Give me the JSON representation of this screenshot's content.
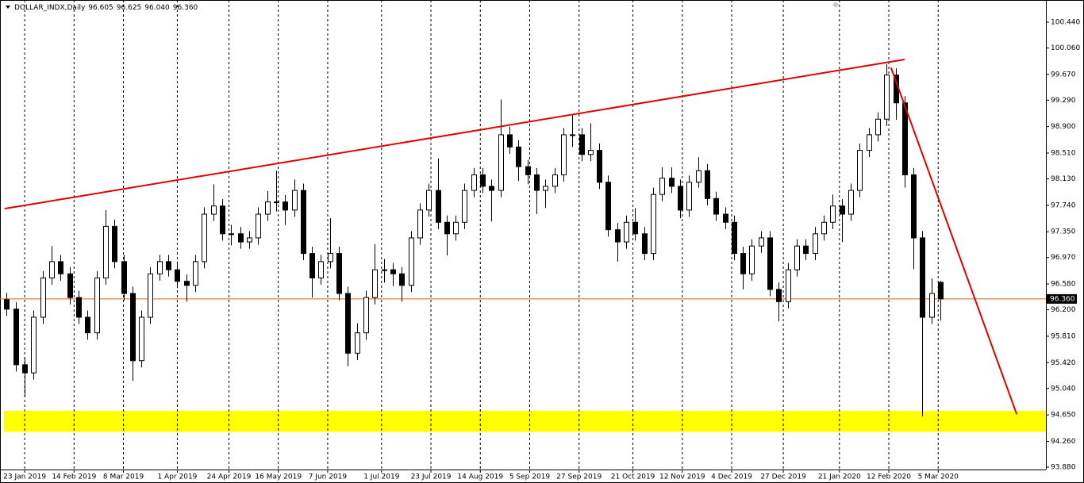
{
  "chart_data": {
    "type": "candlestick",
    "title": "DOLLAR_INDX,Daily",
    "last_bar": [
      {
        "value": 96.605,
        "label": "96.605"
      },
      {
        "value": 96.625,
        "label": "96.625"
      },
      {
        "value": 96.04,
        "label": "96.040"
      },
      {
        "value": 96.36,
        "label": "96.360"
      }
    ],
    "x": [
      "2019-01-15",
      "2019-01-19",
      "2019-01-23",
      "2019-01-27",
      "2019-01-31",
      "2019-02-04",
      "2019-02-08",
      "2019-02-12",
      "2019-02-16",
      "2019-02-20",
      "2019-02-24",
      "2019-02-28",
      "2019-03-04",
      "2019-03-08",
      "2019-03-12",
      "2019-03-16",
      "2019-03-20",
      "2019-03-24",
      "2019-03-28",
      "2019-04-01",
      "2019-04-05",
      "2019-04-09",
      "2019-04-13",
      "2019-04-17",
      "2019-04-21",
      "2019-04-25",
      "2019-04-29",
      "2019-05-03",
      "2019-05-07",
      "2019-05-11",
      "2019-05-15",
      "2019-05-19",
      "2019-05-23",
      "2019-05-27",
      "2019-05-31",
      "2019-06-04",
      "2019-06-08",
      "2019-06-12",
      "2019-06-16",
      "2019-06-20",
      "2019-06-24",
      "2019-06-28",
      "2019-07-02",
      "2019-07-06",
      "2019-07-10",
      "2019-07-14",
      "2019-07-18",
      "2019-07-22",
      "2019-07-26",
      "2019-07-30",
      "2019-08-03",
      "2019-08-07",
      "2019-08-11",
      "2019-08-15",
      "2019-08-19",
      "2019-08-23",
      "2019-08-27",
      "2019-08-31",
      "2019-09-04",
      "2019-09-08",
      "2019-09-12",
      "2019-09-16",
      "2019-09-20",
      "2019-09-24",
      "2019-09-28",
      "2019-10-02",
      "2019-10-06",
      "2019-10-10",
      "2019-10-14",
      "2019-10-18",
      "2019-10-22",
      "2019-10-26",
      "2019-10-30",
      "2019-11-03",
      "2019-11-07",
      "2019-11-11",
      "2019-11-15",
      "2019-11-19",
      "2019-11-23",
      "2019-11-27",
      "2019-12-01",
      "2019-12-05",
      "2019-12-09",
      "2019-12-13",
      "2019-12-17",
      "2019-12-21",
      "2019-12-25",
      "2019-12-29",
      "2020-01-02",
      "2020-01-06",
      "2020-01-10",
      "2020-01-14",
      "2020-01-18",
      "2020-01-22",
      "2020-01-26",
      "2020-01-30",
      "2020-02-03",
      "2020-02-07",
      "2020-02-11",
      "2020-02-15",
      "2020-02-19",
      "2020-02-23",
      "2020-02-27",
      "2020-03-02",
      "2020-03-06"
    ],
    "open": [
      96.35,
      96.21,
      95.39,
      95.27,
      96.09,
      96.67,
      96.91,
      96.73,
      96.38,
      96.09,
      95.86,
      96.67,
      97.43,
      96.91,
      96.44,
      95.45,
      96.09,
      96.73,
      96.91,
      96.79,
      96.62,
      96.56,
      96.91,
      97.61,
      97.73,
      97.32,
      97.32,
      97.2,
      97.26,
      97.61,
      97.79,
      97.79,
      97.67,
      97.96,
      97.03,
      96.67,
      96.91,
      97.03,
      96.44,
      95.56,
      95.86,
      96.38,
      96.79,
      96.79,
      96.73,
      96.56,
      97.26,
      97.67,
      97.96,
      97.49,
      97.32,
      97.49,
      97.96,
      98.19,
      98.02,
      97.96,
      98.78,
      98.6,
      98.31,
      98.19,
      97.96,
      98.02,
      98.19,
      98.78,
      98.78,
      98.49,
      98.55,
      98.08,
      97.38,
      97.2,
      97.49,
      97.32,
      97.03,
      97.9,
      98.14,
      98.02,
      97.67,
      98.08,
      98.25,
      97.84,
      97.61,
      97.49,
      97.03,
      96.73,
      97.14,
      97.26,
      96.5,
      96.32,
      96.79,
      97.14,
      97.03,
      97.32,
      97.49,
      97.73,
      97.61,
      97.96,
      98.55,
      98.78,
      99.01,
      99.66,
      99.25,
      98.19,
      97.26,
      96.09,
      96.605
    ],
    "high": [
      96.45,
      96.31,
      95.49,
      96.19,
      96.77,
      97.14,
      97.01,
      96.83,
      96.48,
      96.19,
      96.77,
      97.67,
      97.53,
      97.01,
      96.54,
      96.19,
      96.83,
      97.01,
      97.01,
      96.89,
      96.72,
      97.01,
      97.71,
      98.05,
      97.83,
      97.45,
      97.42,
      97.36,
      97.71,
      97.95,
      98.25,
      97.89,
      98.12,
      98.06,
      97.13,
      97.01,
      97.55,
      97.13,
      96.54,
      96.0,
      96.48,
      97.17,
      96.95,
      96.89,
      96.83,
      97.36,
      97.77,
      98.06,
      98.43,
      97.59,
      97.59,
      98.06,
      98.29,
      98.29,
      98.12,
      99.3,
      98.9,
      98.7,
      98.41,
      98.29,
      98.12,
      98.29,
      98.88,
      99.07,
      98.88,
      98.95,
      98.65,
      98.18,
      97.48,
      97.59,
      97.7,
      97.42,
      98.0,
      98.3,
      98.3,
      98.12,
      98.18,
      98.45,
      98.35,
      97.94,
      97.71,
      97.59,
      97.13,
      97.24,
      97.36,
      97.36,
      96.6,
      96.89,
      97.24,
      97.24,
      97.42,
      97.59,
      97.9,
      97.83,
      98.06,
      98.65,
      98.88,
      99.11,
      99.82,
      99.76,
      99.35,
      98.29,
      97.36,
      96.66,
      96.625
    ],
    "low": [
      96.11,
      95.29,
      94.92,
      95.17,
      95.99,
      96.57,
      96.63,
      96.28,
      95.99,
      95.76,
      95.76,
      96.57,
      96.81,
      96.34,
      95.15,
      95.35,
      95.99,
      96.63,
      96.69,
      96.52,
      96.32,
      96.46,
      96.81,
      97.51,
      97.22,
      97.15,
      97.1,
      97.1,
      97.16,
      97.51,
      97.65,
      97.45,
      97.57,
      96.93,
      96.38,
      96.57,
      96.81,
      96.34,
      95.37,
      95.46,
      95.76,
      96.28,
      96.6,
      96.55,
      96.32,
      96.46,
      97.16,
      97.57,
      97.39,
      97.0,
      97.22,
      97.39,
      97.86,
      97.92,
      97.5,
      97.86,
      98.5,
      98.1,
      98.05,
      97.61,
      97.7,
      97.92,
      98.09,
      98.6,
      98.39,
      98.39,
      97.98,
      97.28,
      96.91,
      97.1,
      97.22,
      96.93,
      96.93,
      97.8,
      97.92,
      97.55,
      97.57,
      98.0,
      97.74,
      97.51,
      97.39,
      96.93,
      96.5,
      96.63,
      97.04,
      96.4,
      96.03,
      96.22,
      96.69,
      96.93,
      96.93,
      97.22,
      97.39,
      97.2,
      97.51,
      97.86,
      98.45,
      98.68,
      98.91,
      99.0,
      98.0,
      96.8,
      94.63,
      95.99,
      96.04
    ],
    "close": [
      96.21,
      95.39,
      95.27,
      96.09,
      96.67,
      96.91,
      96.73,
      96.38,
      96.09,
      95.86,
      96.67,
      97.43,
      96.91,
      96.44,
      95.45,
      96.09,
      96.73,
      96.91,
      96.79,
      96.62,
      96.56,
      96.91,
      97.61,
      97.73,
      97.32,
      97.32,
      97.2,
      97.26,
      97.61,
      97.79,
      97.79,
      97.67,
      97.96,
      97.03,
      96.67,
      96.91,
      97.03,
      96.44,
      95.56,
      95.86,
      96.38,
      96.79,
      96.79,
      96.73,
      96.56,
      97.26,
      97.67,
      97.96,
      97.49,
      97.32,
      97.49,
      97.96,
      98.19,
      98.02,
      97.96,
      98.78,
      98.6,
      98.31,
      98.19,
      97.96,
      98.02,
      98.19,
      98.78,
      98.78,
      98.49,
      98.55,
      98.08,
      97.38,
      97.2,
      97.49,
      97.32,
      97.03,
      97.9,
      98.14,
      98.02,
      97.67,
      98.08,
      98.25,
      97.84,
      97.61,
      97.49,
      97.03,
      96.73,
      97.14,
      97.26,
      96.5,
      96.32,
      96.79,
      97.14,
      97.03,
      97.32,
      97.49,
      97.73,
      97.61,
      97.96,
      98.55,
      98.78,
      99.01,
      99.66,
      99.25,
      98.19,
      97.26,
      96.09,
      96.44,
      96.36
    ],
    "color": "#000000",
    "xlim": [
      "2019-01-12",
      "2020-04-22"
    ],
    "xticks": [
      {
        "value": "2019-01-23",
        "label": "23 Jan 2019"
      },
      {
        "value": "2019-02-14",
        "label": "14 Feb 2019"
      },
      {
        "value": "2019-03-08",
        "label": "8 Mar 2019"
      },
      {
        "value": "2019-04-01",
        "label": "1 Apr 2019"
      },
      {
        "value": "2019-04-24",
        "label": "24 Apr 2019"
      },
      {
        "value": "2019-05-16",
        "label": "16 May 2019"
      },
      {
        "value": "2019-06-07",
        "label": "7 Jun 2019"
      },
      {
        "value": "2019-07-01",
        "label": "1 Jul 2019"
      },
      {
        "value": "2019-07-23",
        "label": "23 Jul 2019"
      },
      {
        "value": "2019-08-14",
        "label": "14 Aug 2019"
      },
      {
        "value": "2019-09-05",
        "label": "5 Sep 2019"
      },
      {
        "value": "2019-09-27",
        "label": "27 Sep 2019"
      },
      {
        "value": "2019-10-21",
        "label": "21 Oct 2019"
      },
      {
        "value": "2019-11-12",
        "label": "12 Nov 2019"
      },
      {
        "value": "2019-12-04",
        "label": "4 Dec 2019"
      },
      {
        "value": "2019-12-27",
        "label": "27 Dec 2019"
      },
      {
        "value": "2020-01-21",
        "label": "21 Jan 2020"
      },
      {
        "value": "2020-02-12",
        "label": "12 Feb 2020"
      },
      {
        "value": "2020-03-05",
        "label": "5 Mar 2020"
      }
    ],
    "ylim": [
      93.845,
      100.767
    ],
    "yticks": [
      {
        "value": 100.44,
        "label": "100.440"
      },
      {
        "value": 100.06,
        "label": "100.060"
      },
      {
        "value": 99.67,
        "label": "99.670"
      },
      {
        "value": 99.29,
        "label": "99.290"
      },
      {
        "value": 98.9,
        "label": "98.900"
      },
      {
        "value": 98.51,
        "label": "98.510"
      },
      {
        "value": 98.13,
        "label": "98.130"
      },
      {
        "value": 97.74,
        "label": "97.740"
      },
      {
        "value": 97.35,
        "label": "97.350"
      },
      {
        "value": 96.97,
        "label": "96.970"
      },
      {
        "value": 96.58,
        "label": "96.580"
      },
      {
        "value": 96.2,
        "label": "96.200"
      },
      {
        "value": 95.81,
        "label": "95.810"
      },
      {
        "value": 95.42,
        "label": "95.420"
      },
      {
        "value": 95.04,
        "label": "95.040"
      },
      {
        "value": 94.65,
        "label": "94.650"
      },
      {
        "value": 94.26,
        "label": "94.260"
      },
      {
        "value": 93.88,
        "label": "93.880"
      }
    ],
    "grid": true,
    "price_line": {
      "value": 96.36,
      "label": "96.360",
      "color": "#d2691e"
    },
    "zone": {
      "ylim": [
        94.4,
        94.71
      ],
      "color": "#ffff00"
    },
    "trendlines": [
      {
        "x": [
          "2019-01-14",
          "2020-02-19"
        ],
        "y": [
          97.69,
          99.89
        ],
        "color": "#e00000"
      },
      {
        "x": [
          "2020-02-13",
          "2020-04-09"
        ],
        "y": [
          99.77,
          94.66
        ],
        "color": "#e00000"
      }
    ]
  }
}
